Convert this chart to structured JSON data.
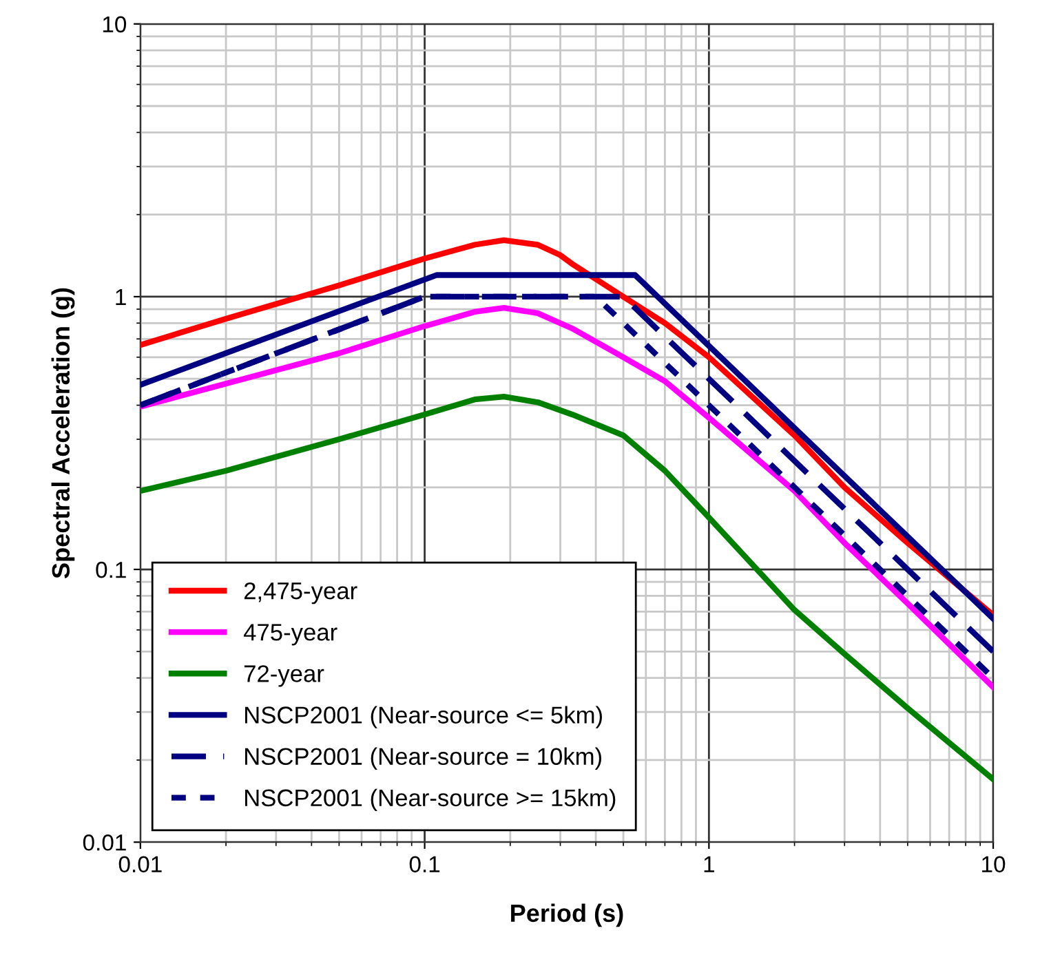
{
  "chart_data": {
    "type": "line",
    "xlabel": "Period (s)",
    "ylabel": "Spectral Acceleration (g)",
    "log": "xy",
    "grid": true,
    "legend": "bottom left",
    "marker": "none",
    "xlim": [
      0.01,
      10
    ],
    "ylim": [
      0.01,
      10
    ],
    "xticks": [
      0.01,
      0.1,
      1,
      10
    ],
    "yticks": [
      0.01,
      0.1,
      1,
      10
    ],
    "series": [
      {
        "name": "2,475-year",
        "color": "#ff0000",
        "line_style": "solid",
        "x": [
          0.01,
          0.02,
          0.05,
          0.1,
          0.15,
          0.19,
          0.25,
          0.3,
          0.33,
          0.4,
          0.5,
          0.7,
          1,
          2,
          3,
          5,
          10
        ],
        "values": [
          0.665,
          0.83,
          1.1,
          1.38,
          1.55,
          1.61,
          1.55,
          1.42,
          1.32,
          1.16,
          1.0,
          0.8,
          0.6,
          0.31,
          0.2,
          0.125,
          0.068
        ]
      },
      {
        "name": "475-year",
        "color": "#ff00ff",
        "line_style": "solid",
        "x": [
          0.01,
          0.02,
          0.05,
          0.1,
          0.15,
          0.19,
          0.25,
          0.33,
          0.5,
          0.7,
          1,
          2,
          3,
          5,
          10
        ],
        "values": [
          0.395,
          0.48,
          0.62,
          0.78,
          0.88,
          0.91,
          0.87,
          0.765,
          0.6,
          0.49,
          0.36,
          0.194,
          0.125,
          0.075,
          0.037
        ]
      },
      {
        "name": "72-year",
        "color": "#008000",
        "line_style": "solid",
        "x": [
          0.01,
          0.02,
          0.05,
          0.1,
          0.15,
          0.19,
          0.25,
          0.33,
          0.5,
          0.7,
          1,
          2,
          3,
          5,
          10
        ],
        "values": [
          0.194,
          0.23,
          0.3,
          0.37,
          0.42,
          0.43,
          0.41,
          0.37,
          0.31,
          0.23,
          0.155,
          0.071,
          0.049,
          0.031,
          0.017
        ]
      },
      {
        "name": "NSCP2001 (Near-source <= 5km)",
        "color": "#000080",
        "line_style": "solid",
        "x": [
          0.01,
          0.11,
          0.55,
          10
        ],
        "values": [
          0.475,
          1.2,
          1.2,
          0.066
        ]
      },
      {
        "name": "NSCP2001 (Near-source = 10km)",
        "color": "#000080",
        "line_style": "dashed",
        "x": [
          0.01,
          0.1,
          0.5,
          10
        ],
        "values": [
          0.4,
          1.0,
          1.0,
          0.05
        ]
      },
      {
        "name": "NSCP2001 (Near-source >= 15km)",
        "color": "#000080",
        "line_style": "dotted",
        "x": [
          0.01,
          0.1,
          0.4,
          10
        ],
        "values": [
          0.4,
          1.0,
          1.0,
          0.04
        ]
      }
    ]
  }
}
